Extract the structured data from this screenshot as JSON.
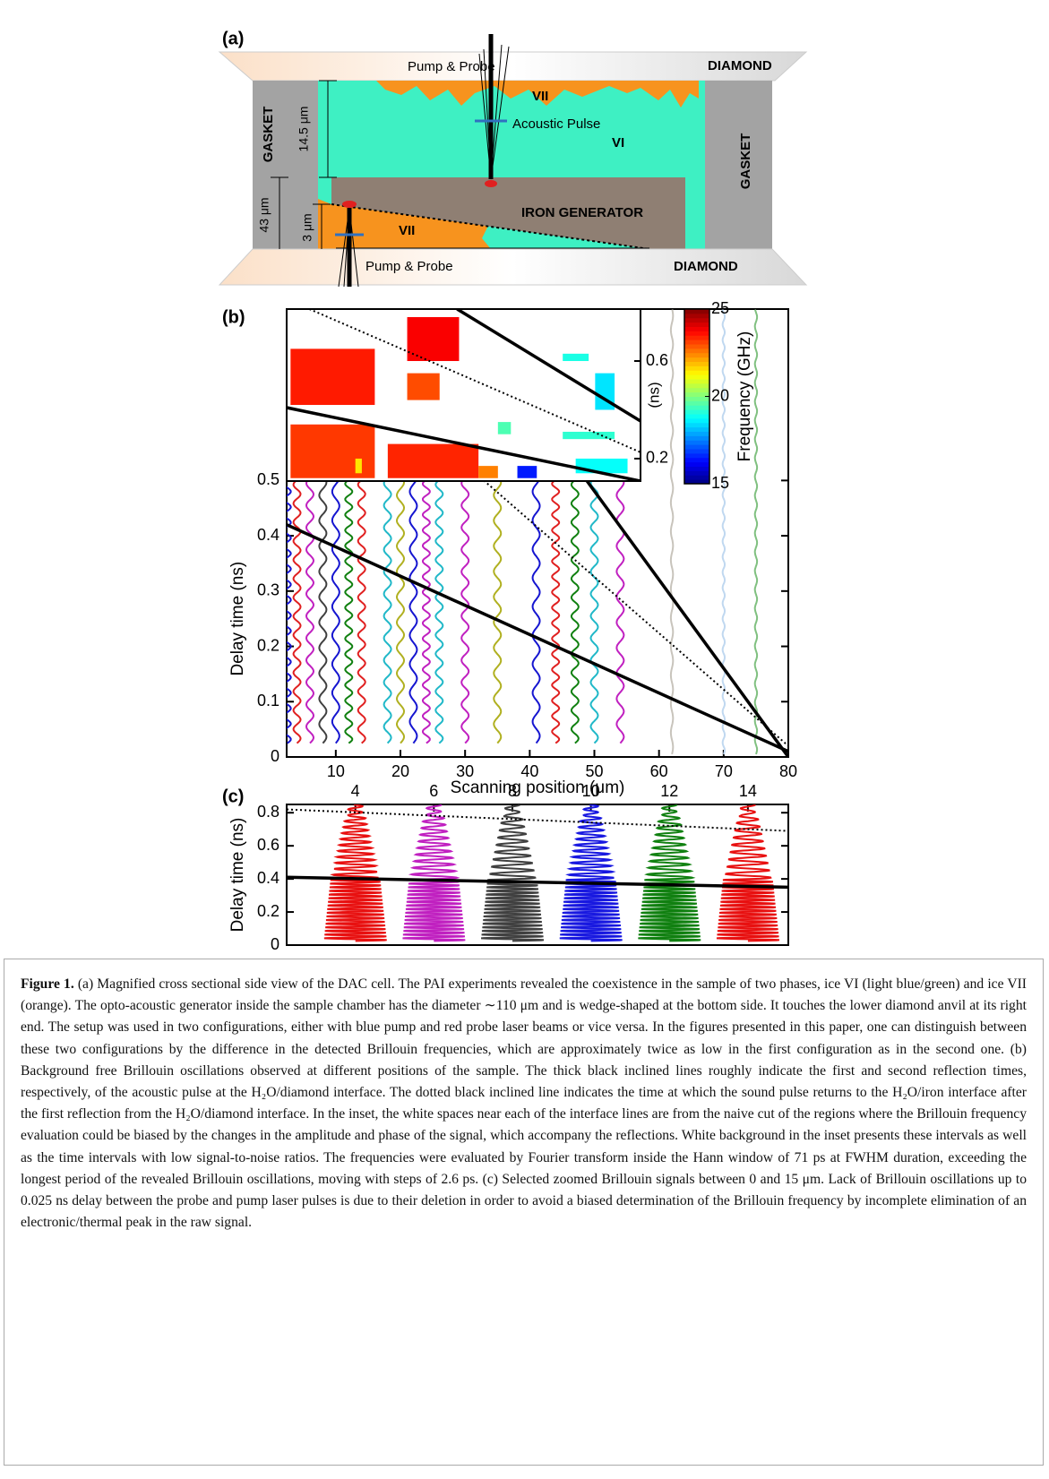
{
  "panel_a": {
    "label": "(a)",
    "pump_probe_top": "Pump & Probe",
    "diamond_top": "DIAMOND",
    "vii_top": "VII",
    "acoustic_pulse": "Acoustic Pulse",
    "vi": "VI",
    "gasket_left": "GASKET",
    "gasket_right": "GASKET",
    "dim_14_5": "14.5 μm",
    "dim_43": "43 μm",
    "dim_3": "3 μm",
    "iron_generator": "IRON GENERATOR",
    "vii_bottom": "VII",
    "pump_probe_bottom": "Pump & Probe",
    "diamond_bottom": "DIAMOND"
  },
  "chart_data": [
    {
      "type": "line",
      "panel_label": "(b)",
      "xlabel": "Scanning position (μm)",
      "ylabel": "Delay time (ns)",
      "xlim": [
        2.4,
        80
      ],
      "ylim": [
        0,
        0.81
      ],
      "xticks": [
        10,
        20,
        30,
        40,
        50,
        60,
        70,
        80
      ],
      "yticks": [
        0,
        0.1,
        0.2,
        0.3,
        0.4,
        0.5
      ],
      "traces": [
        {
          "x": 2.5,
          "color": "#1515d0"
        },
        {
          "x": 4,
          "color": "#e02020"
        },
        {
          "x": 6,
          "color": "#c020c0"
        },
        {
          "x": 8,
          "color": "#404040"
        },
        {
          "x": 10,
          "color": "#1515d0"
        },
        {
          "x": 12,
          "color": "#108010"
        },
        {
          "x": 14,
          "color": "#e02020"
        },
        {
          "x": 18,
          "color": "#20b8c8"
        },
        {
          "x": 20,
          "color": "#b0b020"
        },
        {
          "x": 22,
          "color": "#1515d0"
        },
        {
          "x": 24,
          "color": "#c020c0"
        },
        {
          "x": 26,
          "color": "#20b8c8"
        },
        {
          "x": 30,
          "color": "#c020c0"
        },
        {
          "x": 35,
          "color": "#b0b020"
        },
        {
          "x": 41,
          "color": "#1515d0"
        },
        {
          "x": 44,
          "color": "#e02020"
        },
        {
          "x": 47,
          "color": "#108010"
        },
        {
          "x": 50,
          "color": "#20b8c8"
        },
        {
          "x": 54,
          "color": "#c020c0"
        },
        {
          "x": 62,
          "color": "#c8c4bc"
        },
        {
          "x": 70,
          "color": "#c0d8f0"
        },
        {
          "x": 75,
          "color": "#80c080"
        }
      ],
      "guides": [
        {
          "style": "solid",
          "x": [
            2.4,
            80
          ],
          "y": [
            0.42,
            0.01
          ]
        },
        {
          "style": "solid",
          "x": [
            48.8,
            80
          ],
          "y": [
            0.5,
            0
          ]
        },
        {
          "style": "dotted",
          "x": [
            32.9,
            80
          ],
          "y": [
            0.5,
            0.02
          ]
        }
      ],
      "inset": {
        "ylabel": "(ns)",
        "xlim": [
          2.4,
          57
        ],
        "ylim": [
          0.108,
          0.813
        ],
        "yticks": [
          0.2,
          0.6
        ],
        "cells": [
          [
            3,
            16,
            0.42,
            0.65,
            23.5
          ],
          [
            3,
            16,
            0.12,
            0.34,
            23.2
          ],
          [
            21,
            29,
            0.6,
            0.78,
            23.8
          ],
          [
            21,
            26,
            0.44,
            0.55,
            23
          ],
          [
            18,
            32,
            0.12,
            0.26,
            23.4
          ],
          [
            32,
            35,
            0.12,
            0.17,
            22.5
          ],
          [
            35,
            37,
            0.3,
            0.35,
            19.5
          ],
          [
            38,
            41,
            0.12,
            0.17,
            16.5
          ],
          [
            45,
            49,
            0.6,
            0.63,
            19
          ],
          [
            50,
            53,
            0.4,
            0.55,
            18.5
          ],
          [
            45,
            53,
            0.28,
            0.31,
            19.2
          ],
          [
            47,
            55,
            0.14,
            0.2,
            18.8
          ],
          [
            13,
            14,
            0.14,
            0.2,
            21.5
          ]
        ],
        "guides": [
          {
            "style": "solid",
            "x": [
              2.4,
              57
            ],
            "y": [
              0.409,
              0.108
            ]
          },
          {
            "style": "solid",
            "x": [
              28.7,
              57
            ],
            "y": [
              0.813,
              0.354
            ]
          },
          {
            "style": "dotted",
            "x": [
              5.9,
              57
            ],
            "y": [
              0.813,
              0.226
            ]
          }
        ]
      },
      "colorbar": {
        "label": "Frequency (GHz)",
        "lim": [
          15,
          25
        ],
        "ticks": [
          15,
          20,
          25
        ]
      }
    },
    {
      "type": "line",
      "panel_label": "(c)",
      "ylabel": "Delay time (ns)",
      "xlim": [
        2.25,
        15.03
      ],
      "ylim": [
        0,
        0.85
      ],
      "xticks": [
        4,
        6,
        8,
        10,
        12,
        14
      ],
      "yticks": [
        0,
        0.2,
        0.4,
        0.6,
        0.8
      ],
      "traces": [
        {
          "x": 4,
          "color": "#e81010"
        },
        {
          "x": 6,
          "color": "#c020c0"
        },
        {
          "x": 8,
          "color": "#404040"
        },
        {
          "x": 10,
          "color": "#1818e0"
        },
        {
          "x": 12,
          "color": "#108010"
        },
        {
          "x": 14,
          "color": "#e81010"
        }
      ],
      "guides": [
        {
          "style": "solid",
          "x": [
            2.25,
            15.03
          ],
          "y": [
            0.41,
            0.35
          ]
        },
        {
          "style": "dotted",
          "x": [
            2.25,
            15.03
          ],
          "y": [
            0.82,
            0.69
          ]
        }
      ]
    }
  ],
  "caption": {
    "label": "Figure 1.",
    "text": " (a) Magnified cross sectional side view of the DAC cell. The PAI experiments revealed the coexistence in the sample of two phases, ice VI (light blue/green) and ice VII (orange). The opto-acoustic generator inside the sample chamber has the diameter ∼110 μm and is wedge-shaped at the bottom side. It touches the lower diamond anvil at its right end. The setup was used in two configurations, either with blue pump and red probe laser beams or vice versa. In the figures presented in this paper, one can distinguish between these two configurations by the difference in the detected Brillouin frequencies, which are approximately twice as low in the first configuration as in the second one. (b) Background free Brillouin oscillations observed at different positions of the sample. The thick black inclined lines roughly indicate the first and second reflection times, respectively, of the acoustic pulse at the H₂O/diamond interface. The dotted black inclined line indicates the time at which the sound pulse returns to the H₂O/iron interface after the first reflection from the H₂O/diamond interface. In the inset, the white spaces near each of the interface lines are from the naive cut of the regions where the Brillouin frequency evaluation could be biased by the changes in the amplitude and phase of the signal, which accompany the reflections. White background in the inset presents these intervals as well as the time intervals with low signal-to-noise ratios. The frequencies were evaluated by Fourier transform inside the Hann window of 71 ps at FWHM duration, exceeding the longest period of the revealed Brillouin oscillations, moving with steps of 2.6 ps. (c) Selected zoomed Brillouin signals between 0 and 15 μm. Lack of Brillouin oscillations up to 0.025 ns delay between the probe and pump laser pulses is due to their deletion in order to avoid a biased determination of the Brillouin frequency by incomplete elimination of an electronic/thermal peak in the raw signal."
  }
}
